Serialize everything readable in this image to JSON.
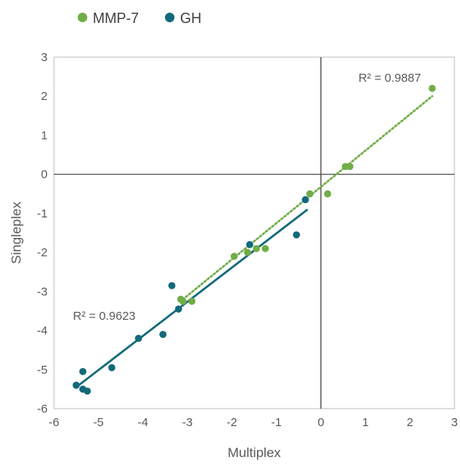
{
  "chart_data": {
    "type": "scatter",
    "xlabel": "Multiplex",
    "ylabel": "Singleplex",
    "xlim": [
      -6,
      3
    ],
    "ylim": [
      -6,
      3
    ],
    "xticks": [
      "-6",
      "-5",
      "-4",
      "-3",
      "-2",
      "-1",
      "0",
      "1",
      "2",
      "3"
    ],
    "yticks": [
      "3",
      "2",
      "1",
      "0",
      "-1",
      "-2",
      "-3",
      "-4",
      "-5",
      "-6"
    ],
    "grid": false,
    "legend_position": "top-left",
    "series": [
      {
        "name": "MMP-7",
        "color": "#70AD47",
        "trendline_style": "dotted",
        "r2_label": "R² = 0.9887",
        "trendline": {
          "x_start": -3.1,
          "y_start": -3.2,
          "x_end": 2.5,
          "y_end": 2.0
        },
        "points": [
          {
            "x": 2.5,
            "y": 2.2
          },
          {
            "x": 0.55,
            "y": 0.2
          },
          {
            "x": 0.65,
            "y": 0.2
          },
          {
            "x": 0.15,
            "y": -0.5
          },
          {
            "x": -0.25,
            "y": -0.5
          },
          {
            "x": -1.25,
            "y": -1.9
          },
          {
            "x": -1.45,
            "y": -1.9
          },
          {
            "x": -1.65,
            "y": -2.0
          },
          {
            "x": -1.95,
            "y": -2.1
          },
          {
            "x": -2.9,
            "y": -3.25
          },
          {
            "x": -3.1,
            "y": -3.25
          },
          {
            "x": -3.15,
            "y": -3.2
          }
        ]
      },
      {
        "name": "GH",
        "color": "#13697A",
        "trendline_style": "solid",
        "r2_label": "R² = 0.9623",
        "trendline": {
          "x_start": -5.5,
          "y_start": -5.45,
          "x_end": -0.3,
          "y_end": -0.9
        },
        "points": [
          {
            "x": -0.35,
            "y": -0.65
          },
          {
            "x": -0.55,
            "y": -1.55
          },
          {
            "x": -1.6,
            "y": -1.8
          },
          {
            "x": -3.35,
            "y": -2.85
          },
          {
            "x": -3.2,
            "y": -3.45
          },
          {
            "x": -4.1,
            "y": -4.2
          },
          {
            "x": -3.55,
            "y": -4.1
          },
          {
            "x": -4.7,
            "y": -4.95
          },
          {
            "x": -5.35,
            "y": -5.05
          },
          {
            "x": -5.5,
            "y": -5.4
          },
          {
            "x": -5.35,
            "y": -5.5
          },
          {
            "x": -5.25,
            "y": -5.55
          }
        ]
      }
    ]
  }
}
